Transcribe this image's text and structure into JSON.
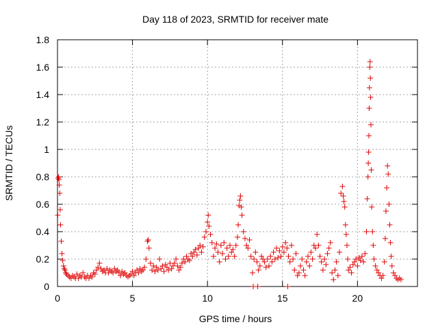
{
  "chart_data": {
    "type": "scatter",
    "title": "Day 118 of 2023, SRMTID for receiver mate",
    "xlabel": "GPS time / hours",
    "ylabel": "SRMTID / TECUs",
    "xlim": [
      0,
      24
    ],
    "ylim": [
      0,
      1.8
    ],
    "xticks": [
      0,
      5,
      10,
      15,
      20
    ],
    "xtick_labels": [
      "0",
      "5",
      "10",
      "15",
      "20"
    ],
    "yticks": [
      0,
      0.2,
      0.4,
      0.6,
      0.8,
      1.0,
      1.2,
      1.4,
      1.6,
      1.8
    ],
    "ytick_labels": [
      "0",
      "0.2",
      "0.4",
      "0.6",
      "0.8",
      "1",
      "1.2",
      "1.4",
      "1.6",
      "1.8"
    ],
    "grid": true,
    "marker": "+",
    "series": [
      {
        "name": "SRMTID",
        "color": "#e00000",
        "x": [
          0.02,
          0.05,
          0.08,
          0.1,
          0.12,
          0.15,
          0.18,
          0.2,
          0.25,
          0.3,
          0.35,
          0.4,
          0.45,
          0.5,
          0.55,
          0.6,
          0.7,
          0.8,
          0.9,
          1.0,
          1.1,
          1.2,
          1.3,
          1.4,
          1.5,
          1.6,
          1.7,
          1.8,
          1.9,
          2.0,
          2.1,
          2.2,
          2.3,
          2.4,
          2.5,
          2.6,
          2.7,
          2.8,
          2.9,
          3.0,
          3.1,
          3.2,
          3.3,
          3.4,
          3.5,
          3.6,
          3.7,
          3.8,
          3.9,
          4.0,
          4.1,
          4.2,
          4.3,
          4.4,
          4.5,
          4.6,
          4.7,
          4.8,
          4.9,
          5.0,
          5.1,
          5.2,
          5.3,
          5.4,
          5.5,
          5.6,
          5.7,
          5.8,
          5.9,
          6.0,
          6.05,
          6.1,
          6.2,
          6.3,
          6.4,
          6.5,
          6.6,
          6.7,
          6.8,
          6.9,
          7.0,
          7.1,
          7.2,
          7.3,
          7.4,
          7.5,
          7.6,
          7.7,
          7.8,
          7.9,
          8.0,
          8.1,
          8.2,
          8.3,
          8.4,
          8.5,
          8.6,
          8.7,
          8.8,
          8.9,
          9.0,
          9.1,
          9.2,
          9.3,
          9.4,
          9.5,
          9.6,
          9.7,
          9.8,
          9.9,
          10.0,
          10.05,
          10.1,
          10.2,
          10.3,
          10.4,
          10.5,
          10.6,
          10.7,
          10.8,
          10.9,
          11.0,
          11.1,
          11.2,
          11.3,
          11.4,
          11.5,
          11.6,
          11.7,
          11.8,
          11.9,
          12.0,
          12.05,
          12.1,
          12.15,
          12.2,
          12.25,
          12.3,
          12.4,
          12.5,
          12.6,
          12.7,
          12.8,
          12.9,
          13.0,
          13.05,
          13.1,
          13.2,
          13.3,
          13.35,
          13.4,
          13.5,
          13.6,
          13.7,
          13.8,
          13.9,
          14.0,
          14.1,
          14.2,
          14.3,
          14.4,
          14.5,
          14.6,
          14.7,
          14.8,
          14.9,
          15.0,
          15.1,
          15.2,
          15.3,
          15.35,
          15.4,
          15.5,
          15.6,
          15.7,
          15.8,
          15.9,
          16.0,
          16.1,
          16.2,
          16.3,
          16.4,
          16.5,
          16.6,
          16.7,
          16.8,
          16.9,
          17.0,
          17.1,
          17.2,
          17.3,
          17.4,
          17.5,
          17.6,
          17.7,
          17.8,
          17.9,
          18.0,
          18.1,
          18.2,
          18.3,
          18.4,
          18.5,
          18.6,
          18.7,
          18.8,
          18.9,
          19.0,
          19.05,
          19.1,
          19.15,
          19.2,
          19.25,
          19.3,
          19.35,
          19.4,
          19.5,
          19.6,
          19.7,
          19.8,
          19.9,
          20.0,
          20.1,
          20.2,
          20.3,
          20.4,
          20.5,
          20.6,
          20.65,
          20.7,
          20.72,
          20.74,
          20.76,
          20.78,
          20.8,
          20.82,
          20.84,
          20.86,
          20.88,
          20.9,
          20.92,
          20.95,
          21.0,
          21.05,
          21.1,
          21.2,
          21.3,
          21.4,
          21.5,
          21.6,
          21.7,
          21.8,
          21.85,
          21.9,
          21.95,
          22.0,
          22.05,
          22.1,
          22.15,
          22.2,
          22.25,
          22.3,
          22.4,
          22.5,
          22.6,
          22.7,
          22.8,
          22.9
        ],
        "y": [
          0.52,
          0.79,
          0.8,
          0.78,
          0.74,
          0.68,
          0.56,
          0.45,
          0.33,
          0.24,
          0.19,
          0.15,
          0.13,
          0.12,
          0.1,
          0.09,
          0.08,
          0.07,
          0.06,
          0.08,
          0.07,
          0.06,
          0.09,
          0.06,
          0.08,
          0.07,
          0.1,
          0.07,
          0.06,
          0.08,
          0.06,
          0.08,
          0.07,
          0.1,
          0.09,
          0.12,
          0.14,
          0.17,
          0.13,
          0.11,
          0.12,
          0.1,
          0.13,
          0.1,
          0.12,
          0.11,
          0.1,
          0.13,
          0.11,
          0.12,
          0.1,
          0.08,
          0.11,
          0.09,
          0.1,
          0.08,
          0.07,
          0.08,
          0.09,
          0.11,
          0.08,
          0.1,
          0.12,
          0.1,
          0.13,
          0.11,
          0.12,
          0.14,
          0.2,
          0.33,
          0.34,
          0.28,
          0.17,
          0.12,
          0.15,
          0.11,
          0.14,
          0.12,
          0.2,
          0.13,
          0.15,
          0.11,
          0.16,
          0.14,
          0.12,
          0.17,
          0.13,
          0.15,
          0.17,
          0.2,
          0.15,
          0.12,
          0.14,
          0.17,
          0.2,
          0.18,
          0.22,
          0.2,
          0.19,
          0.24,
          0.22,
          0.25,
          0.27,
          0.23,
          0.28,
          0.3,
          0.25,
          0.29,
          0.36,
          0.4,
          0.47,
          0.52,
          0.44,
          0.38,
          0.32,
          0.22,
          0.28,
          0.31,
          0.25,
          0.18,
          0.3,
          0.24,
          0.32,
          0.2,
          0.28,
          0.22,
          0.3,
          0.25,
          0.27,
          0.22,
          0.3,
          0.36,
          0.45,
          0.59,
          0.63,
          0.66,
          0.58,
          0.52,
          0.4,
          0.35,
          0.3,
          0.28,
          0.34,
          0.22,
          0.1,
          0.0,
          0.2,
          0.25,
          0.18,
          0.0,
          0.12,
          0.15,
          0.22,
          0.2,
          0.18,
          0.14,
          0.2,
          0.15,
          0.22,
          0.18,
          0.25,
          0.2,
          0.28,
          0.21,
          0.26,
          0.22,
          0.29,
          0.25,
          0.32,
          0.28,
          0.0,
          0.22,
          0.18,
          0.3,
          0.2,
          0.12,
          0.24,
          0.08,
          0.1,
          0.15,
          0.2,
          0.12,
          0.08,
          0.18,
          0.22,
          0.15,
          0.25,
          0.2,
          0.3,
          0.28,
          0.38,
          0.3,
          0.22,
          0.18,
          0.12,
          0.2,
          0.16,
          0.24,
          0.28,
          0.32,
          0.1,
          0.05,
          0.12,
          0.18,
          0.08,
          0.25,
          0.68,
          0.73,
          0.66,
          0.62,
          0.58,
          0.45,
          0.38,
          0.3,
          0.2,
          0.12,
          0.14,
          0.1,
          0.16,
          0.18,
          0.2,
          0.15,
          0.21,
          0.19,
          0.22,
          0.18,
          0.24,
          0.4,
          0.64,
          0.8,
          0.9,
          0.98,
          1.1,
          1.3,
          1.45,
          1.6,
          1.64,
          1.52,
          1.38,
          1.18,
          0.85,
          0.58,
          0.4,
          0.3,
          0.2,
          0.15,
          0.12,
          0.1,
          0.08,
          0.06,
          0.08,
          0.18,
          0.35,
          0.55,
          0.72,
          0.88,
          0.82,
          0.6,
          0.45,
          0.32,
          0.22,
          0.15,
          0.1,
          0.08,
          0.06,
          0.05,
          0.06,
          0.05
        ]
      }
    ]
  }
}
